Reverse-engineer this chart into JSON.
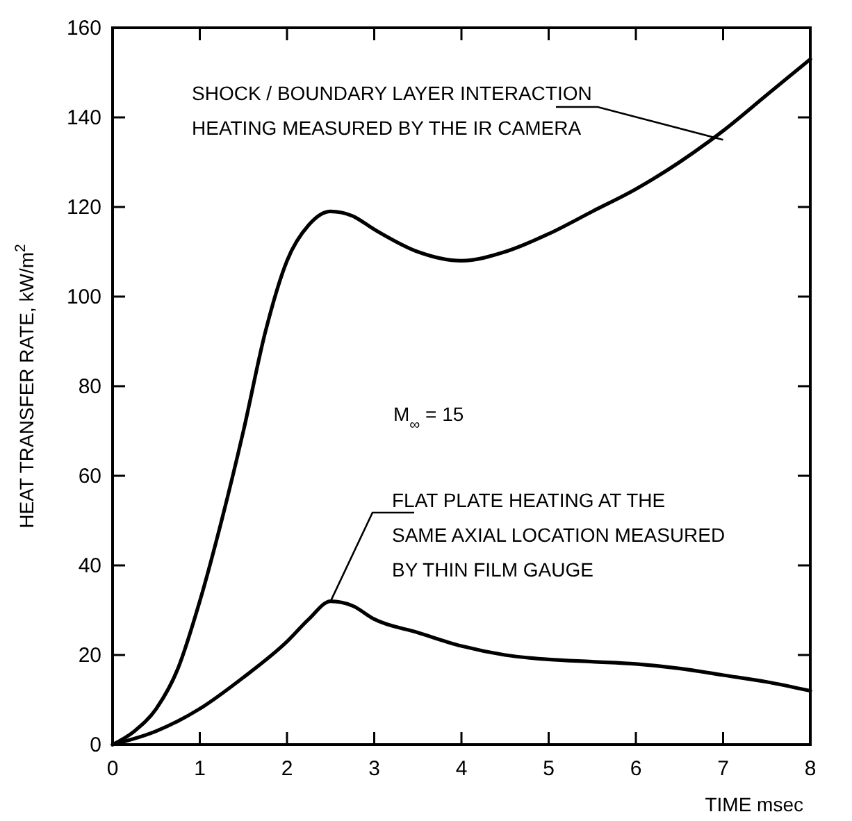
{
  "chart_data": {
    "type": "line",
    "xlabel": "TIME msec",
    "ylabel": "HEAT TRANSFER RATE, kW/m$^{2}$",
    "xlim": [
      0,
      8
    ],
    "ylim": [
      0,
      160
    ],
    "xticks": [
      0,
      1,
      2,
      3,
      4,
      5,
      6,
      7,
      8
    ],
    "yticks": [
      0,
      20,
      40,
      60,
      80,
      100,
      120,
      140,
      160
    ],
    "grid": false,
    "marker": "none",
    "line_style": "solid",
    "series": [
      {
        "color": "#000000",
        "x": [
          0,
          0.25,
          0.5,
          0.75,
          1,
          1.25,
          1.5,
          1.75,
          2,
          2.25,
          2.5,
          2.75,
          3,
          3.5,
          4,
          4.5,
          5,
          5.5,
          6,
          6.5,
          7,
          7.5,
          8
        ],
        "values": [
          0,
          3,
          8,
          17,
          32,
          50,
          70,
          92,
          108,
          116,
          119,
          118,
          115,
          110,
          108,
          110,
          114,
          119,
          124,
          130,
          137,
          145,
          153
        ]
      },
      {
        "color": "#000000",
        "x": [
          0,
          0.5,
          1,
          1.5,
          2,
          2.25,
          2.5,
          2.75,
          3,
          3.5,
          4,
          4.5,
          5,
          5.5,
          6,
          6.5,
          7,
          7.5,
          8
        ],
        "values": [
          0,
          3,
          8,
          15,
          23,
          28,
          32,
          31,
          28,
          25,
          22,
          20,
          19,
          18.5,
          18,
          17,
          15.5,
          14,
          12
        ]
      }
    ],
    "annotations": [
      {
        "text": "SHOCK / BOUNDARY LAYER INTERACTION\nHEATING MEASURED BY THE IR CAMERA",
        "x": 7,
        "y": 135
      },
      {
        "text": "FLAT PLATE HEATING AT THE\nSAME AXIAL LOCATION MEASURED\nBY THIN FILM GAUGE",
        "x": 2.5,
        "y": 32
      },
      "M$_{∞}$ = 15"
    ]
  }
}
